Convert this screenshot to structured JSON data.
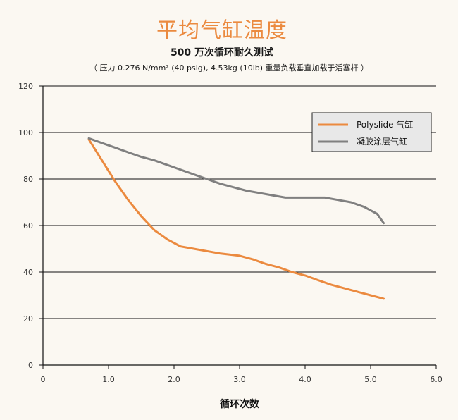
{
  "chart_data": {
    "type": "line",
    "title": "平均气缸温度",
    "subtitle": "500 万次循环耐久测试",
    "note": "（ 压力 0.276 N/mm² (40 psig), 4.53kg (10lb) 重量负载垂直加载于活塞杆 ）",
    "xlabel": "循环次数",
    "ylabel": "",
    "xlim": [
      0,
      6.0
    ],
    "ylim": [
      0,
      120
    ],
    "x_ticks": [
      "0",
      "1.0",
      "2.0",
      "3.0",
      "4.0",
      "5.0",
      "6.0"
    ],
    "y_ticks": [
      "0",
      "20",
      "40",
      "60",
      "80",
      "100",
      "120"
    ],
    "grid": "horizontal",
    "legend_position": "top-right",
    "series": [
      {
        "name": "Polyslide 气缸",
        "color": "#EB8A3F",
        "x": [
          0.7,
          0.9,
          1.1,
          1.3,
          1.5,
          1.7,
          1.9,
          2.1,
          2.3,
          2.5,
          2.7,
          3.0,
          3.2,
          3.4,
          3.6,
          3.8,
          4.0,
          4.2,
          4.4,
          4.6,
          4.8,
          5.0,
          5.2
        ],
        "y": [
          97,
          88,
          79,
          71,
          64,
          58,
          54,
          51,
          50,
          49,
          48,
          47,
          45.5,
          43.5,
          42,
          40,
          38.5,
          36.5,
          34.5,
          33,
          31.5,
          30,
          28.5
        ]
      },
      {
        "name": "凝胶涂层气缸",
        "color": "#808080",
        "x": [
          0.7,
          0.9,
          1.1,
          1.3,
          1.5,
          1.7,
          1.9,
          2.1,
          2.3,
          2.5,
          2.7,
          2.9,
          3.1,
          3.3,
          3.5,
          3.7,
          3.9,
          4.1,
          4.3,
          4.5,
          4.7,
          4.9,
          5.1,
          5.2
        ],
        "y": [
          97.5,
          95.5,
          93.5,
          91.5,
          89.5,
          88,
          86,
          84,
          82,
          80,
          78,
          76.5,
          75,
          74,
          73,
          72,
          72,
          72,
          72,
          71,
          70,
          68,
          65,
          61
        ]
      }
    ]
  }
}
